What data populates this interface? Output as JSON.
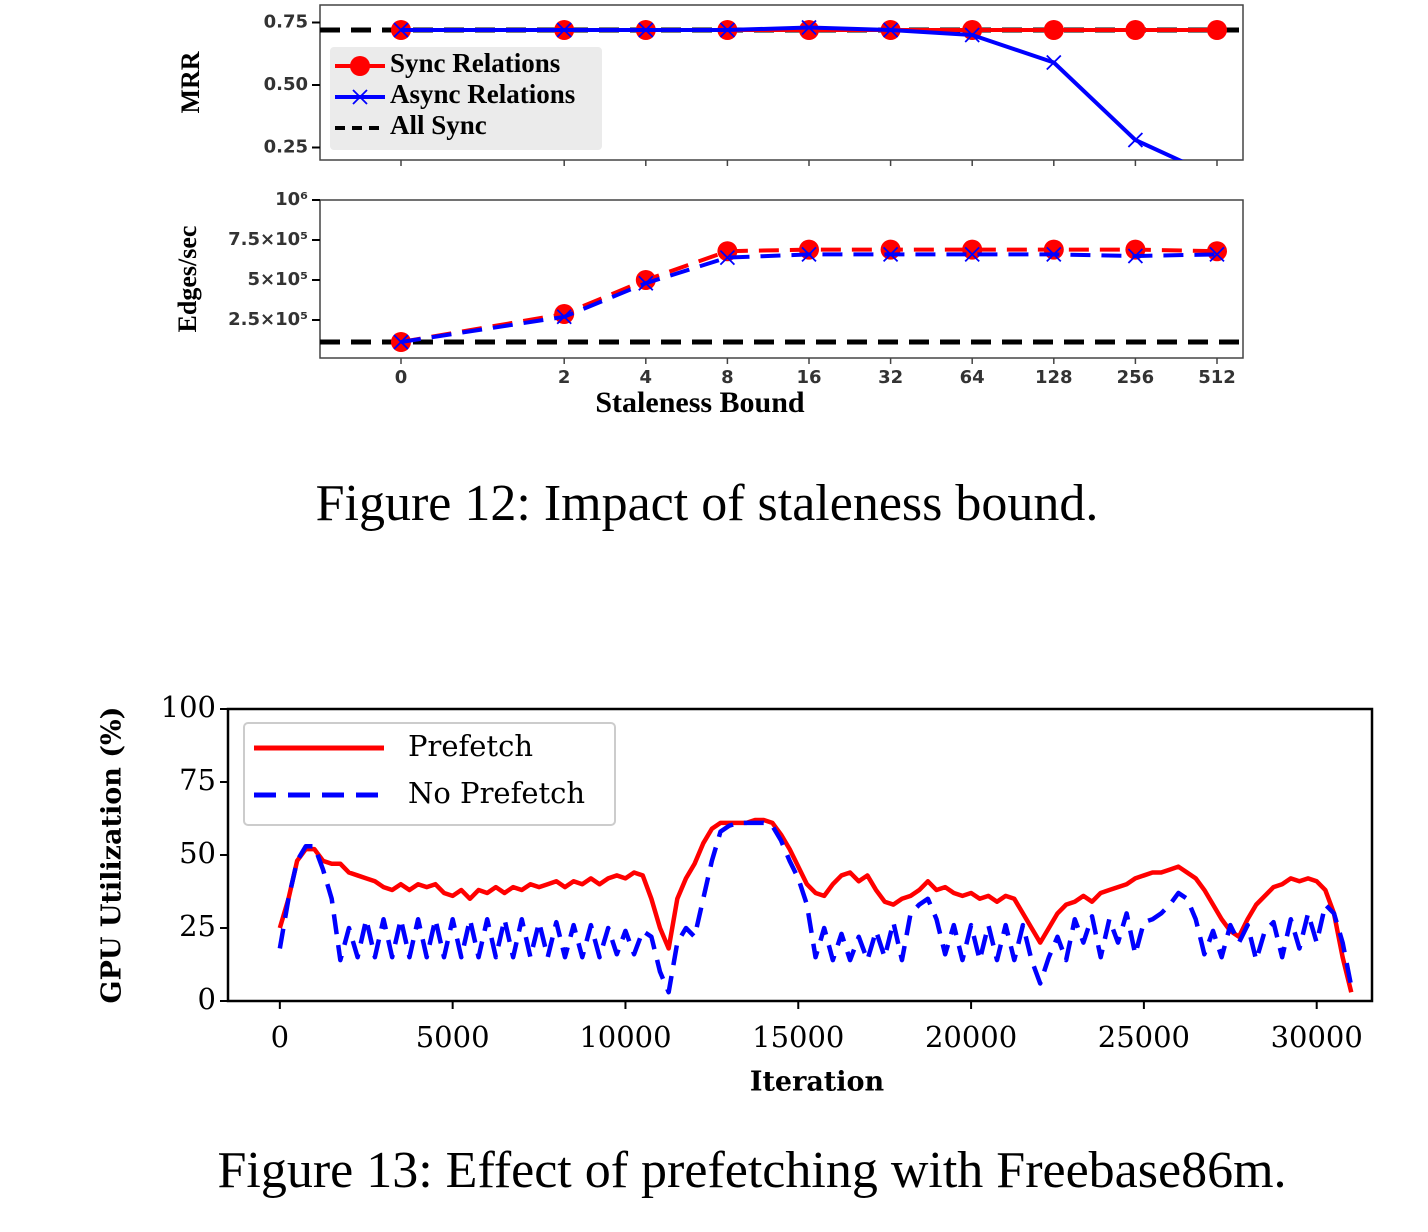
{
  "captions": [
    "Figure 12: Impact of staleness bound.",
    "Figure 13: Effect of prefetching with Freebase86m."
  ],
  "chart_data": [
    {
      "type": "line",
      "ylabel": "MRR",
      "ylim": [
        0.2,
        0.82
      ],
      "yticks": [
        0.25,
        {
          "value": 0.5,
          "label": "0.50"
        },
        0.75
      ],
      "series": [
        {
          "name": "Sync Relations",
          "color": "#ff0000",
          "marker": "circle",
          "linestyle": "solid",
          "values": [
            0.72,
            0.72,
            0.72,
            0.72,
            0.72,
            0.72,
            0.72,
            0.72,
            0.72,
            0.72
          ]
        },
        {
          "name": "Async Relations",
          "color": "#0000ff",
          "marker": "x",
          "linestyle": "solid",
          "values": [
            0.72,
            0.72,
            0.72,
            0.72,
            0.73,
            0.72,
            0.7,
            0.59,
            0.28,
            0.13
          ]
        }
      ],
      "hline": {
        "name": "All Sync",
        "value": 0.72,
        "color": "#000000",
        "linestyle": "dashed"
      },
      "legend": "upper left"
    },
    {
      "type": "line",
      "ylabel": "Edges/sec",
      "xlabel": "Staleness Bound",
      "categories": [
        "0",
        "2",
        "4",
        "8",
        "16",
        "32",
        "64",
        "128",
        "256",
        "512"
      ],
      "ylim": [
        12500,
        1000000
      ],
      "yticks": [
        {
          "value": 250000,
          "label": "2.5×10⁵"
        },
        {
          "value": 500000,
          "label": "5×10⁵"
        },
        {
          "value": 750000,
          "label": "7.5×10⁵"
        },
        {
          "value": 1000000,
          "label": "10⁶"
        }
      ],
      "series": [
        {
          "color": "#ff0000",
          "marker": "circle",
          "linestyle": "dashed",
          "values": [
            112500,
            287500,
            500000,
            680000,
            690000,
            690000,
            690000,
            690000,
            690000,
            680000
          ]
        },
        {
          "color": "#0000ff",
          "marker": "x",
          "linestyle": "dashed",
          "values": [
            112500,
            270000,
            480000,
            640000,
            660000,
            660000,
            660000,
            660000,
            650000,
            660000
          ]
        }
      ],
      "hline": {
        "value": 112500,
        "color": "#000000",
        "linestyle": "dashed"
      }
    },
    {
      "type": "line",
      "ylabel": "GPU Utilization (%)",
      "xlabel": "Iteration",
      "xlim": [
        -1500,
        31600
      ],
      "xticks": [
        0,
        5000,
        10000,
        15000,
        20000,
        25000,
        30000
      ],
      "ylim": [
        0,
        100
      ],
      "yticks": [
        0,
        25,
        50,
        75,
        100
      ],
      "legend": "upper left",
      "x": [
        0,
        250,
        500,
        750,
        1000,
        1250,
        1500,
        1750,
        2000,
        2250,
        2500,
        2750,
        3000,
        3250,
        3500,
        3750,
        4000,
        4250,
        4500,
        4750,
        5000,
        5250,
        5500,
        5750,
        6000,
        6250,
        6500,
        6750,
        7000,
        7250,
        7500,
        7750,
        8000,
        8250,
        8500,
        8750,
        9000,
        9250,
        9500,
        9750,
        10000,
        10250,
        10500,
        10750,
        11000,
        11250,
        11500,
        11750,
        12000,
        12250,
        12500,
        12750,
        13000,
        13250,
        13500,
        13750,
        14000,
        14250,
        14500,
        14750,
        15000,
        15250,
        15500,
        15750,
        16000,
        16250,
        16500,
        16750,
        17000,
        17250,
        17500,
        17750,
        18000,
        18250,
        18500,
        18750,
        19000,
        19250,
        19500,
        19750,
        20000,
        20250,
        20500,
        20750,
        21000,
        21250,
        21500,
        21750,
        22000,
        22250,
        22500,
        22750,
        23000,
        23250,
        23500,
        23750,
        24000,
        24250,
        24500,
        24750,
        25000,
        25250,
        25500,
        25750,
        26000,
        26250,
        26500,
        26750,
        27000,
        27250,
        27500,
        27750,
        28000,
        28250,
        28500,
        28750,
        29000,
        29250,
        29500,
        29750,
        30000,
        30250,
        30500,
        30750,
        31000
      ],
      "series": [
        {
          "name": "Prefetch",
          "color": "#ff0000",
          "linestyle": "solid",
          "values": [
            25,
            35,
            48,
            52,
            52,
            48,
            47,
            47,
            44,
            43,
            42,
            41,
            39,
            38,
            40,
            38,
            40,
            39,
            40,
            37,
            36,
            38,
            35,
            38,
            37,
            39,
            37,
            39,
            38,
            40,
            39,
            40,
            41,
            39,
            41,
            40,
            42,
            40,
            42,
            43,
            42,
            44,
            43,
            35,
            25,
            18,
            35,
            42,
            47,
            54,
            59,
            61,
            61,
            61,
            61,
            62,
            62,
            61,
            57,
            52,
            46,
            40,
            37,
            36,
            40,
            43,
            44,
            41,
            43,
            38,
            34,
            33,
            35,
            36,
            38,
            41,
            38,
            39,
            37,
            36,
            37,
            35,
            36,
            34,
            36,
            35,
            30,
            25,
            20,
            25,
            30,
            33,
            34,
            36,
            34,
            37,
            38,
            39,
            40,
            42,
            43,
            44,
            44,
            45,
            46,
            44,
            42,
            38,
            33,
            28,
            24,
            22,
            28,
            33,
            36,
            39,
            40,
            42,
            41,
            42,
            41,
            38,
            30,
            15,
            3
          ]
        },
        {
          "name": "No Prefetch",
          "color": "#0000ff",
          "linestyle": "dashed",
          "values": [
            18,
            35,
            48,
            53,
            53,
            45,
            35,
            14,
            25,
            15,
            28,
            15,
            28,
            15,
            28,
            15,
            28,
            15,
            28,
            15,
            28,
            15,
            28,
            15,
            28,
            15,
            28,
            15,
            28,
            15,
            27,
            15,
            27,
            15,
            26,
            15,
            26,
            15,
            25,
            16,
            24,
            16,
            24,
            22,
            10,
            3,
            20,
            25,
            22,
            35,
            48,
            58,
            60,
            61,
            61,
            61,
            61,
            60,
            55,
            48,
            42,
            33,
            15,
            25,
            14,
            23,
            14,
            22,
            14,
            24,
            15,
            27,
            14,
            30,
            33,
            35,
            28,
            16,
            26,
            14,
            26,
            14,
            26,
            14,
            26,
            14,
            26,
            14,
            6,
            15,
            22,
            14,
            28,
            20,
            29,
            15,
            28,
            20,
            30,
            16,
            27,
            28,
            30,
            33,
            37,
            35,
            28,
            16,
            24,
            15,
            26,
            20,
            26,
            14,
            24,
            27,
            15,
            28,
            18,
            30,
            20,
            33,
            30,
            20,
            5
          ]
        }
      ]
    }
  ]
}
